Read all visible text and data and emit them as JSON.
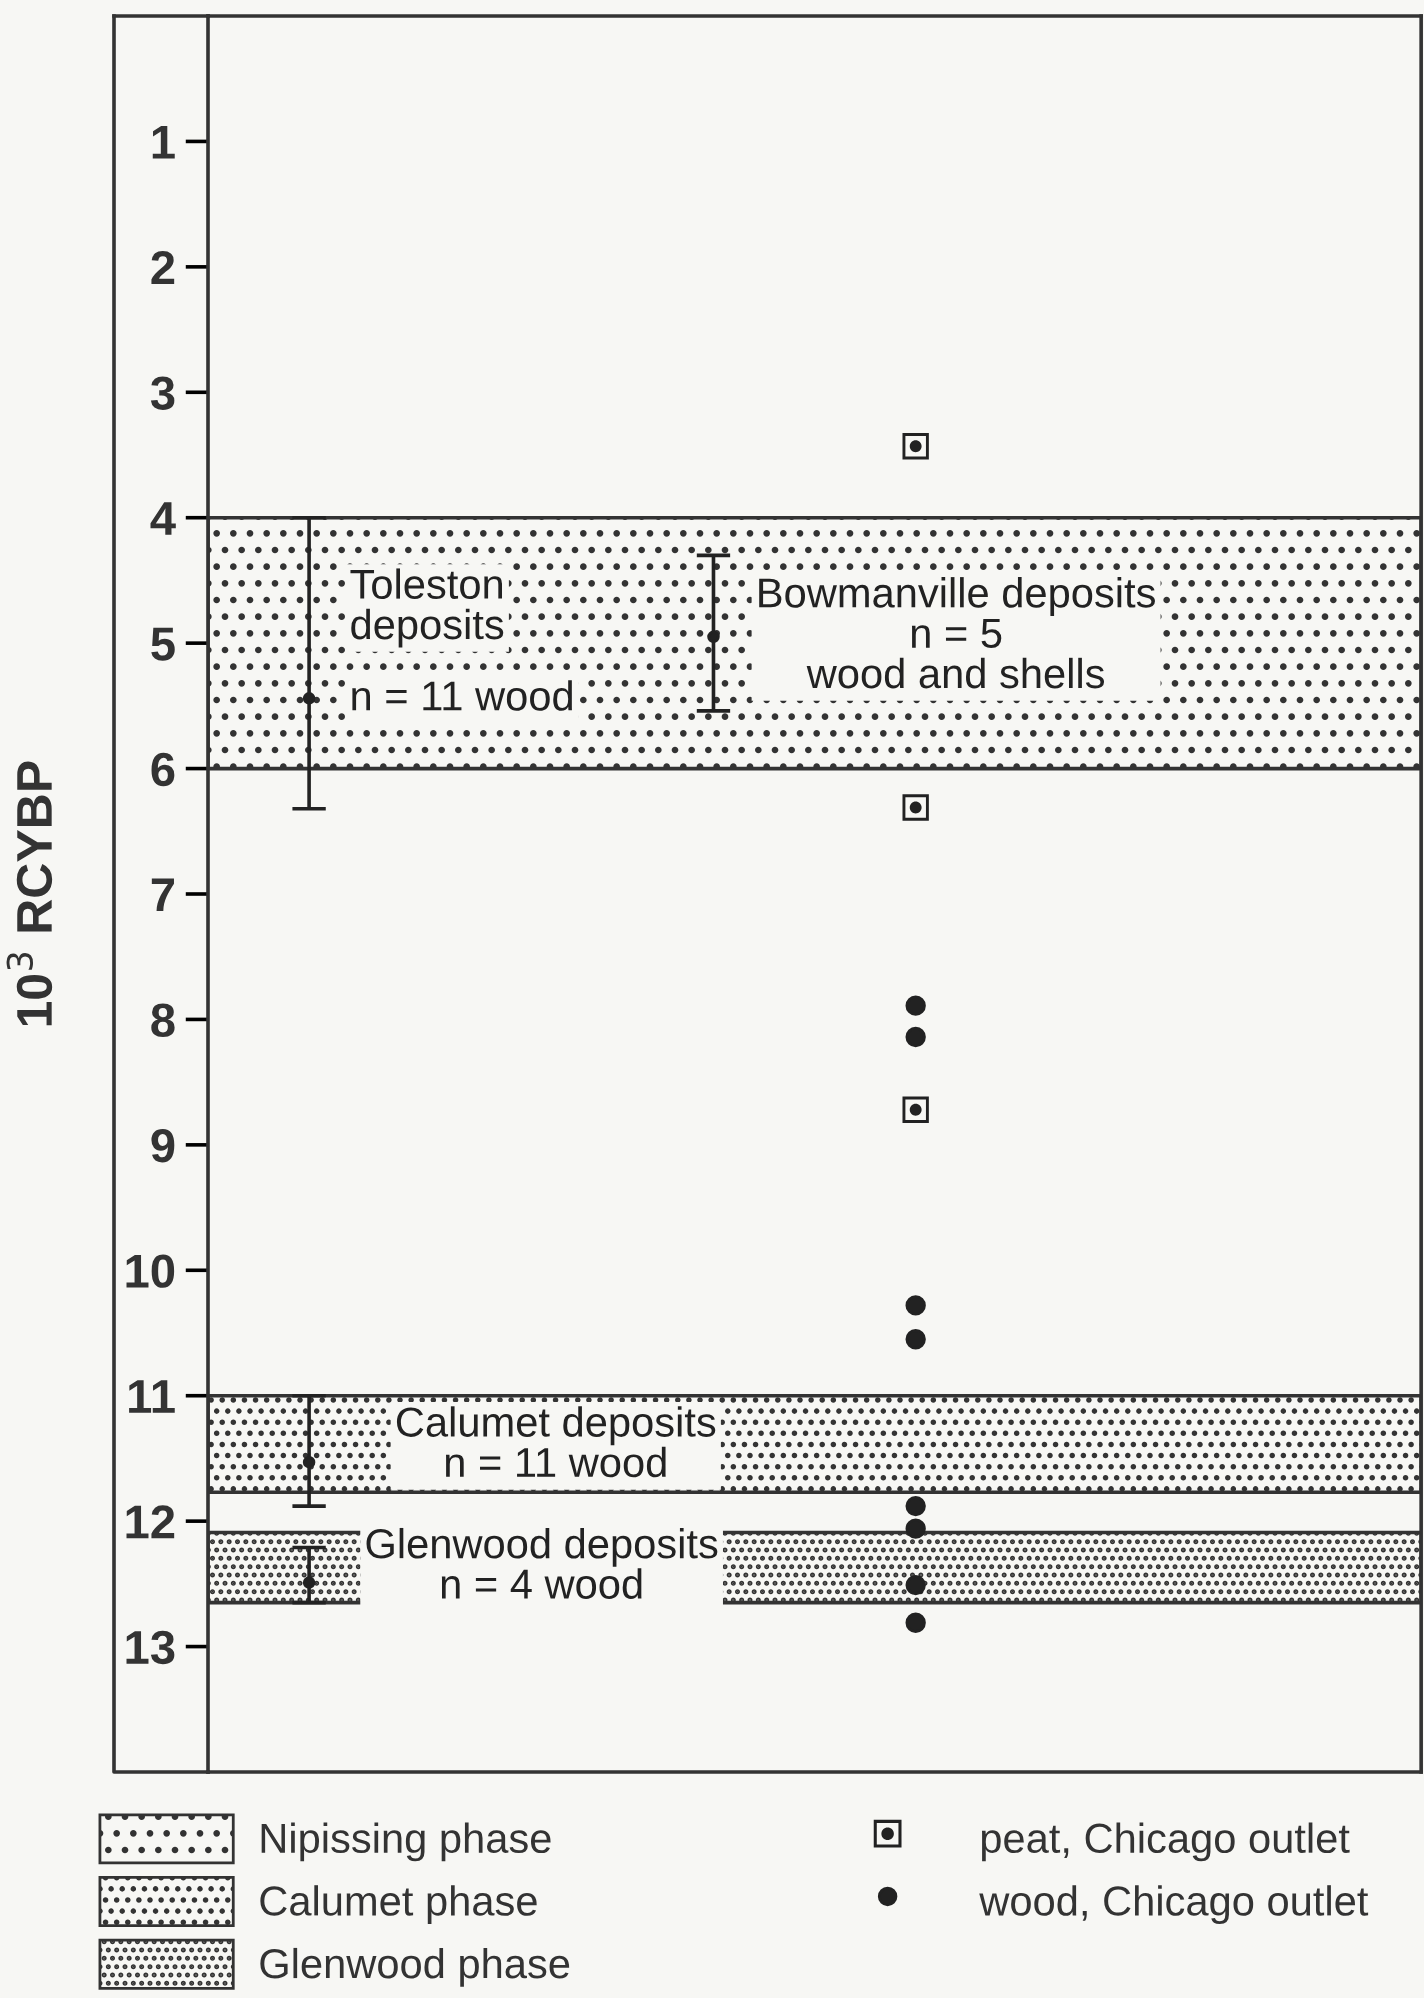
{
  "chart_data": {
    "type": "scatter",
    "ylabel": "10$^{3}$ RCYBP",
    "categories": [
      null,
      null,
      null,
      null,
      null,
      null
    ],
    "ylim": [
      14,
      0
    ],
    "yticks": [
      1,
      2,
      3,
      4,
      5,
      6,
      7,
      8,
      9,
      10,
      11,
      12,
      13
    ],
    "tick_labels": "y",
    "grid": false,
    "legend": "bottom",
    "bands": [
      {
        "axis": "y",
        "from": 4,
        "to": 6,
        "label": "Nipissing phase"
      },
      {
        "axis": "y",
        "from": 11,
        "to": 11.77,
        "label": "Calumet phase"
      },
      {
        "axis": "y",
        "from": 12.09,
        "to": 12.65,
        "label": "Glenwood phase"
      }
    ],
    "series": [
      {
        "color": "#222222",
        "marker": "circle",
        "values": [
          5.44,
          null,
          null,
          null,
          null,
          null
        ],
        "errors": [
          [
            4.0,
            6.32
          ],
          null,
          null,
          null,
          null,
          null
        ]
      },
      {
        "color": "#222222",
        "marker": "circle",
        "values": [
          null,
          null,
          4.95,
          null,
          null,
          null
        ],
        "errors": [
          null,
          null,
          [
            4.3,
            5.54
          ],
          null,
          null,
          null
        ]
      },
      {
        "color": "#222222",
        "marker": "circle",
        "values": [
          11.53,
          null,
          null,
          null,
          null,
          null
        ],
        "errors": [
          [
            11.0,
            11.88
          ],
          null,
          null,
          null,
          null,
          null
        ]
      },
      {
        "color": "#222222",
        "marker": "circle",
        "values": [
          12.49,
          null,
          null,
          null,
          null,
          null
        ],
        "errors": [
          [
            12.21,
            12.65
          ],
          null,
          null,
          null,
          null,
          null
        ]
      },
      {
        "name": "peat, Chicago outlet",
        "color": "#222222",
        "marker": "square",
        "values": [
          null,
          null,
          null,
          3.43,
          null,
          null
        ]
      },
      {
        "color": "#222222",
        "marker": "square",
        "values": [
          null,
          null,
          null,
          6.31,
          null,
          null
        ]
      },
      {
        "color": "#222222",
        "marker": "square",
        "values": [
          null,
          null,
          null,
          8.72,
          null,
          null
        ]
      },
      {
        "name": "wood, Chicago outlet",
        "color": "#222222",
        "marker": "circle",
        "values": [
          null,
          null,
          null,
          7.89,
          null,
          null
        ]
      },
      {
        "color": "#222222",
        "marker": "circle",
        "values": [
          null,
          null,
          null,
          8.14,
          null,
          null
        ]
      },
      {
        "color": "#222222",
        "marker": "circle",
        "values": [
          null,
          null,
          null,
          10.28,
          null,
          null
        ]
      },
      {
        "color": "#222222",
        "marker": "circle",
        "values": [
          null,
          null,
          null,
          10.55,
          null,
          null
        ]
      },
      {
        "color": "#222222",
        "marker": "circle",
        "values": [
          null,
          null,
          null,
          11.88,
          null,
          null
        ]
      },
      {
        "color": "#222222",
        "marker": "circle",
        "values": [
          null,
          null,
          null,
          12.06,
          null,
          null
        ]
      },
      {
        "color": "#222222",
        "marker": "circle",
        "values": [
          null,
          null,
          null,
          12.51,
          null,
          null
        ]
      },
      {
        "color": "#222222",
        "marker": "circle",
        "values": [
          null,
          null,
          null,
          12.81,
          null,
          null
        ]
      }
    ],
    "annotations": [
      "Toleston\ndeposits",
      "n = 11 wood",
      "Bowmanville deposits\nn = 5\nwood and shells",
      "Calumet deposits\nn = 11 wood",
      "Glenwood deposits\nn = 4 wood"
    ]
  }
}
